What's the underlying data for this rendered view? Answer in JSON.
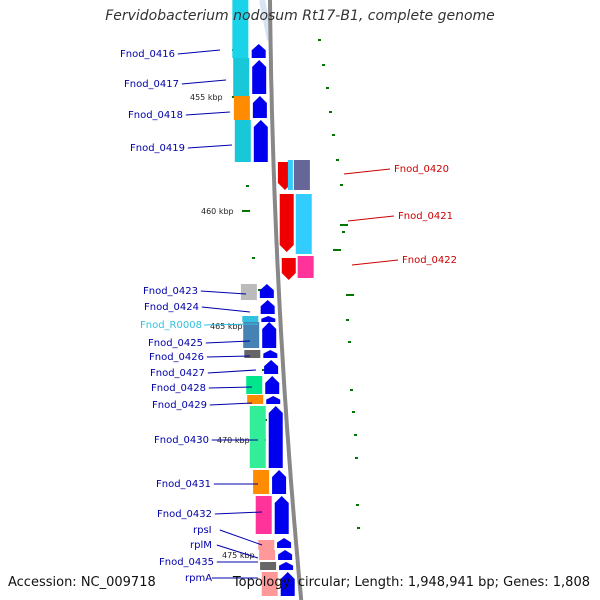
{
  "title": "Fervidobacterium nodosum Rt17-B1, complete genome",
  "footer": {
    "accession": "Accession: NC_009718",
    "summary": "Topology: circular; Length: 1,948,941 bp; Genes: 1,808"
  },
  "colors": {
    "forward_label": "#0000aa",
    "reverse_label": "#cc0000",
    "rna_label": "#33c0e0",
    "backbone": "#888888",
    "ticks": "#007700"
  },
  "ticks": [
    {
      "label": "455 kbp"
    },
    {
      "label": "460 kbp"
    },
    {
      "label": "465 kbp"
    },
    {
      "label": "470 kbp"
    },
    {
      "label": "475 kbp"
    }
  ],
  "genes": [
    {
      "label": "Fnod_0416",
      "strand": "forward",
      "cog_color": "#19d3e8"
    },
    {
      "label": "Fnod_0417",
      "strand": "forward",
      "cog_color": "#19c8d8"
    },
    {
      "label": "Fnod_0418",
      "strand": "forward",
      "cog_color": "#ff8c00"
    },
    {
      "label": "Fnod_0419",
      "strand": "forward",
      "cog_color": "#19c8d8"
    },
    {
      "label": "Fnod_0420",
      "strand": "reverse",
      "cog_color": "#666699"
    },
    {
      "label": "Fnod_0421",
      "strand": "reverse",
      "cog_color": "#33ccff"
    },
    {
      "label": "Fnod_0422",
      "strand": "reverse",
      "cog_color": "#ff3399"
    },
    {
      "label": "Fnod_0423",
      "strand": "forward",
      "cog_color": "#bbbbbb"
    },
    {
      "label": "Fnod_0424",
      "strand": "forward",
      "cog_color": "#ffffff"
    },
    {
      "label": "Fnod_R0008",
      "strand": "forward",
      "cog_color": "#33c0e0"
    },
    {
      "label": "Fnod_0425",
      "strand": "forward",
      "cog_color": "#4682b4"
    },
    {
      "label": "Fnod_0426",
      "strand": "forward",
      "cog_color": "#666666"
    },
    {
      "label": "Fnod_0427",
      "strand": "forward",
      "cog_color": "#ffffff"
    },
    {
      "label": "Fnod_0428",
      "strand": "forward",
      "cog_color": "#00e68a"
    },
    {
      "label": "Fnod_0429",
      "strand": "forward",
      "cog_color": "#ff8c00"
    },
    {
      "label": "Fnod_0430",
      "strand": "forward",
      "cog_color": "#33ee99"
    },
    {
      "label": "Fnod_0431",
      "strand": "forward",
      "cog_color": "#ff8c00"
    },
    {
      "label": "Fnod_0432",
      "strand": "forward",
      "cog_color": "#ff3399"
    },
    {
      "label": "rpsI",
      "strand": "forward",
      "cog_color": "#ff9999"
    },
    {
      "label": "rplM",
      "strand": "forward",
      "cog_color": "#ff9999"
    },
    {
      "label": "Fnod_0435",
      "strand": "forward",
      "cog_color": "#666666"
    },
    {
      "label": "rpmA",
      "strand": "forward",
      "cog_color": "#ff9999"
    }
  ]
}
